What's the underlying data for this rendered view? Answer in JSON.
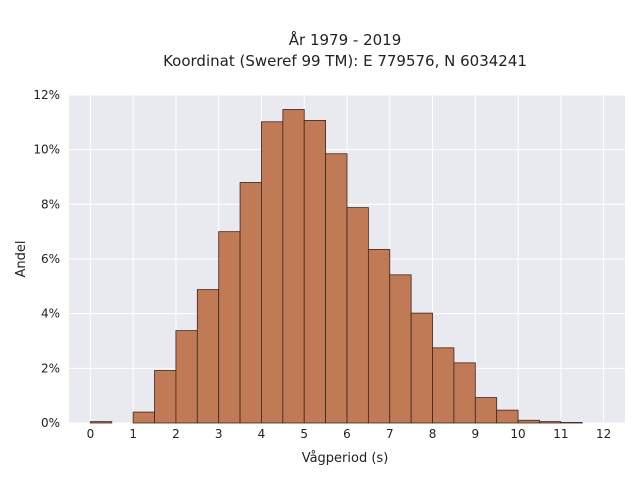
{
  "chart_data": {
    "type": "bar",
    "title": [
      "År 1979 - 2019",
      "Koordinat (Sweref 99 TM): E 779576, N 6034241"
    ],
    "xlabel": "Vågperiod (s)",
    "ylabel": "Andel",
    "x_range": [
      -0.5,
      12.5
    ],
    "ylim": [
      0,
      0.12
    ],
    "bin_width": 0.5,
    "bin_starts": [
      0,
      0.5,
      1,
      1.5,
      2,
      2.5,
      3,
      3.5,
      4,
      4.5,
      5,
      5.5,
      6,
      6.5,
      7,
      7.5,
      8,
      8.5,
      9,
      9.5,
      10,
      10.5,
      11,
      11.5
    ],
    "values": [
      0.0005,
      0,
      0.004,
      0.0192,
      0.0338,
      0.0488,
      0.07,
      0.088,
      0.1102,
      0.1147,
      0.1107,
      0.0985,
      0.0788,
      0.0635,
      0.0542,
      0.0402,
      0.0275,
      0.022,
      0.0093,
      0.0047,
      0.001,
      0.0005,
      0.0002,
      0
    ],
    "xticks": [
      "0",
      "1",
      "2",
      "3",
      "4",
      "5",
      "6",
      "7",
      "8",
      "9",
      "10",
      "11",
      "12"
    ],
    "yticks": [
      "0%",
      "2%",
      "4%",
      "6%",
      "8%",
      "10%",
      "12%"
    ],
    "grid": true,
    "colors": {
      "background": "#e9e9f0",
      "grid": "#ffffff",
      "bar_fill": "#c07a56",
      "bar_stroke": "#3d261a"
    }
  }
}
